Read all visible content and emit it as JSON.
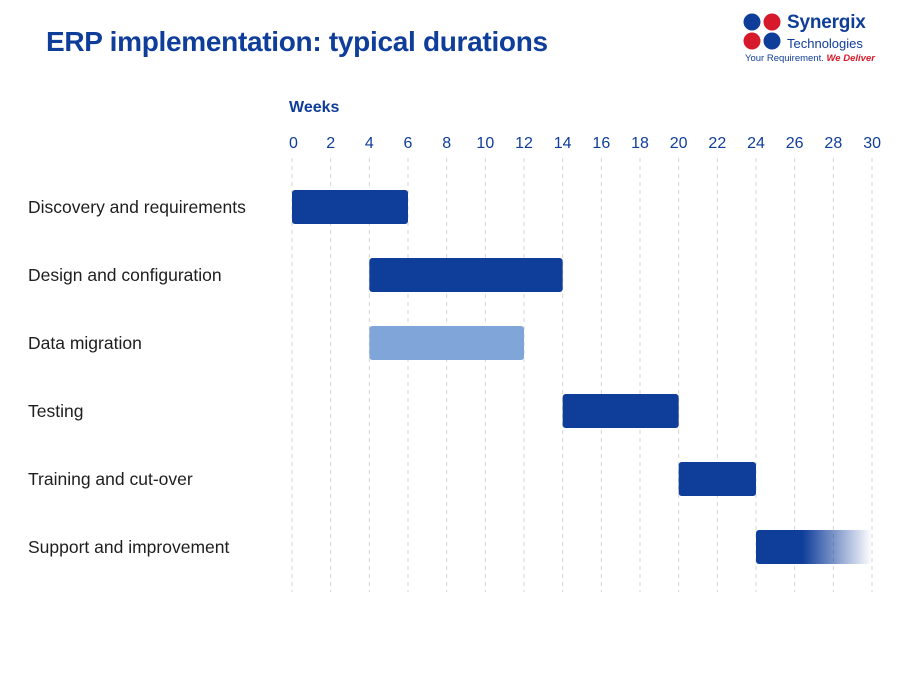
{
  "title": "ERP implementation: typical durations",
  "logo": {
    "name": "Synergix",
    "sub": "Technologies",
    "tagline": "Your Requirement.",
    "tagline_accent": "We Deliver",
    "colors": {
      "blue": "#0f3d9a",
      "red": "#d61a2b"
    }
  },
  "colors": {
    "bar": "#0f3d9a",
    "bar_light": "#7fa5d9",
    "grid": "#d6d6d6",
    "text": "#0f3d9a"
  },
  "chart_data": {
    "type": "bar",
    "orientation": "horizontal-gantt",
    "xlabel": "Weeks",
    "xlim": [
      0,
      30
    ],
    "xticks": [
      0,
      2,
      4,
      6,
      8,
      10,
      12,
      14,
      16,
      18,
      20,
      22,
      24,
      26,
      28,
      30
    ],
    "grid": true,
    "tasks": [
      {
        "name": "Discovery and requirements",
        "start": 0,
        "end": 6,
        "style": "solid"
      },
      {
        "name": "Design and configuration",
        "start": 4,
        "end": 14,
        "style": "solid"
      },
      {
        "name": "Data migration",
        "start": 4,
        "end": 12,
        "style": "light"
      },
      {
        "name": "Testing",
        "start": 14,
        "end": 20,
        "style": "solid"
      },
      {
        "name": "Training and cut-over",
        "start": 20,
        "end": 24,
        "style": "solid"
      },
      {
        "name": "Support and improvement",
        "start": 24,
        "end": 30,
        "style": "fade"
      }
    ]
  }
}
